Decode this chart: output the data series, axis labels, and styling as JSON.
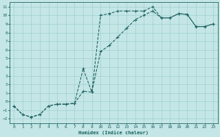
{
  "xlabel": "Humidex (Indice chaleur)",
  "background_color": "#c5e6e6",
  "grid_color": "#9ecece",
  "line_color": "#1a6060",
  "xlim": [
    -0.5,
    23.5
  ],
  "ylim": [
    -2.5,
    11.5
  ],
  "xticks": [
    0,
    1,
    2,
    3,
    4,
    5,
    6,
    7,
    8,
    9,
    10,
    11,
    12,
    13,
    14,
    15,
    16,
    17,
    18,
    19,
    20,
    21,
    22,
    23
  ],
  "yticks": [
    -2,
    -1,
    0,
    1,
    2,
    3,
    4,
    5,
    6,
    7,
    8,
    9,
    10,
    11
  ],
  "upper_x": [
    0,
    1,
    2,
    3,
    4,
    5,
    6,
    7,
    8,
    9,
    10,
    11,
    12,
    13,
    14,
    15,
    16,
    17,
    18,
    19,
    20,
    21,
    22,
    23
  ],
  "upper_y": [
    -0.5,
    -1.5,
    -1.8,
    -1.5,
    -0.5,
    -0.3,
    -0.3,
    -0.2,
    3.8,
    1.1,
    10.0,
    10.2,
    10.5,
    10.5,
    10.5,
    10.5,
    11.0,
    9.7,
    9.7,
    10.2,
    10.1,
    8.7,
    8.7,
    9.0
  ],
  "lower_x": [
    0,
    1,
    2,
    3,
    4,
    5,
    6,
    7,
    8,
    9,
    10,
    11,
    12,
    13,
    14,
    15,
    16,
    17,
    18,
    19,
    20,
    21,
    22,
    23
  ],
  "lower_y": [
    -0.5,
    -1.5,
    -1.8,
    -1.5,
    -0.5,
    -0.3,
    -0.3,
    -0.2,
    1.2,
    1.1,
    5.8,
    6.5,
    7.5,
    8.5,
    9.5,
    10.0,
    10.5,
    9.7,
    9.7,
    10.2,
    10.1,
    8.7,
    8.7,
    9.0
  ],
  "figwidth": 3.2,
  "figheight": 2.0,
  "dpi": 100
}
